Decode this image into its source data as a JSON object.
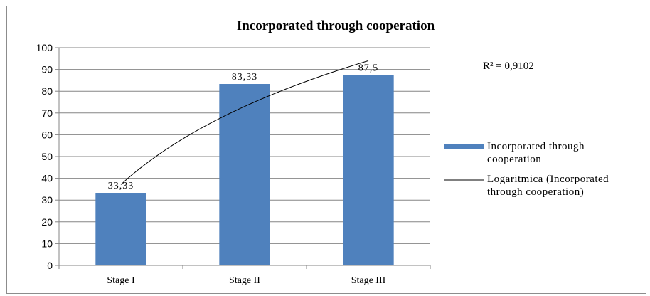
{
  "chart_data": {
    "type": "bar",
    "title": "Incorporated through cooperation",
    "categories": [
      "Stage I",
      "Stage II",
      "Stage III"
    ],
    "series": [
      {
        "name": "Incorporated through cooperation",
        "values": [
          33.33,
          83.33,
          87.5
        ],
        "labels": [
          "33,33",
          "83,33",
          "87,5"
        ],
        "color": "#4f81bd"
      }
    ],
    "trendline": {
      "type": "logarithmic",
      "name": "Logaritmica (Incorporated through cooperation)",
      "color": "#000000",
      "r_squared_label": "R² = 0,9102"
    },
    "ylim": [
      0,
      100
    ],
    "yticks": [
      0,
      10,
      20,
      30,
      40,
      50,
      60,
      70,
      80,
      90,
      100
    ],
    "grid": true,
    "legend_position": "right",
    "legend": [
      {
        "label_lines": [
          "Incorporated through",
          "cooperation"
        ],
        "kind": "bar",
        "color": "#4f81bd"
      },
      {
        "label_lines": [
          "Logaritmica (Incorporated",
          "through cooperation)"
        ],
        "kind": "line",
        "color": "#000000"
      }
    ]
  }
}
